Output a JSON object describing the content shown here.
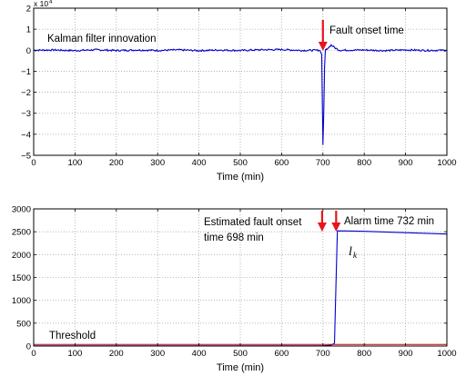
{
  "chart_data": [
    {
      "type": "line",
      "y_exponent_base": "x 10",
      "y_exponent_power": "4",
      "xlabel": "Time (min)",
      "ylabel": "",
      "xlim": [
        0,
        1000
      ],
      "ylim": [
        -50000,
        20000
      ],
      "x_ticks": [
        "0",
        "100",
        "200",
        "300",
        "400",
        "500",
        "600",
        "700",
        "800",
        "900",
        "1000"
      ],
      "y_ticks": [
        "−5",
        "−4",
        "−3",
        "−2",
        "−1",
        "0",
        "1",
        "2"
      ],
      "grid": true,
      "series": [
        {
          "color": "#0000cc",
          "points": [
            [
              0,
              0
            ],
            [
              50,
              100
            ],
            [
              100,
              -200
            ],
            [
              150,
              200
            ],
            [
              200,
              -150
            ],
            [
              250,
              100
            ],
            [
              300,
              -100
            ],
            [
              350,
              150
            ],
            [
              400,
              -200
            ],
            [
              450,
              100
            ],
            [
              500,
              -150
            ],
            [
              550,
              200
            ],
            [
              600,
              300
            ],
            [
              650,
              -100
            ],
            [
              690,
              0
            ],
            [
              695,
              -1000
            ],
            [
              700,
              -45000
            ],
            [
              703,
              -20000
            ],
            [
              705,
              0
            ],
            [
              710,
              500
            ],
            [
              720,
              2500
            ],
            [
              730,
              1000
            ],
            [
              740,
              0
            ],
            [
              800,
              100
            ],
            [
              850,
              -200
            ],
            [
              900,
              150
            ],
            [
              950,
              -100
            ],
            [
              1000,
              0
            ]
          ]
        }
      ],
      "annotations": {
        "label": "Kalman filter innovation",
        "fault_text": "Fault onset time",
        "fault_x": 700
      }
    },
    {
      "type": "line",
      "xlabel": "Time (min)",
      "ylabel": "",
      "xlim": [
        0,
        1000
      ],
      "ylim": [
        0,
        3000
      ],
      "x_ticks": [
        "0",
        "100",
        "200",
        "300",
        "400",
        "500",
        "600",
        "700",
        "800",
        "900",
        "1000"
      ],
      "y_ticks": [
        "0",
        "500",
        "1000",
        "1500",
        "2000",
        "2500",
        "3000"
      ],
      "grid": true,
      "series": [
        {
          "color": "#0000cc",
          "points": [
            [
              0,
              5
            ],
            [
              700,
              5
            ],
            [
              720,
              20
            ],
            [
              728,
              60
            ],
            [
              732,
              1500
            ],
            [
              735,
              2520
            ],
            [
              800,
              2510
            ],
            [
              900,
              2480
            ],
            [
              1000,
              2450
            ]
          ]
        },
        {
          "color": "#cc0000",
          "points": [
            [
              0,
              35
            ],
            [
              1000,
              35
            ]
          ]
        }
      ],
      "annotations": {
        "threshold_text": "Threshold",
        "est_text_line1": "Estimated fault onset",
        "est_text_line2": "time 698 min",
        "alarm_text": "Alarm time 732 min",
        "lk_main": "l",
        "lk_sub": "k",
        "est_x": 698,
        "alarm_x": 732
      }
    }
  ],
  "colors": {
    "arrow": "#e8141c",
    "grid": "#aaaaaa"
  }
}
